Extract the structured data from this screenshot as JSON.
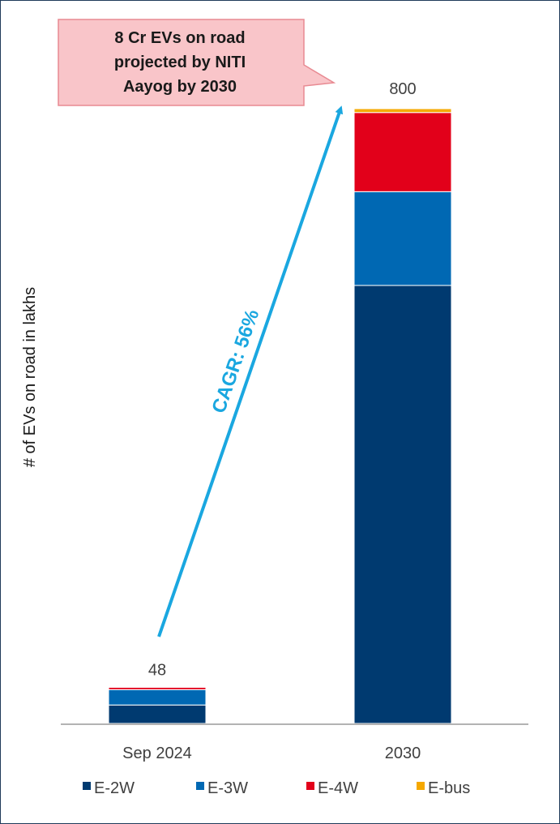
{
  "chart_data": {
    "type": "bar",
    "stacked": true,
    "categories": [
      "Sep 2024",
      "2030"
    ],
    "ylabel": "# of EVs on road in lakhs",
    "totals": [
      "48",
      "800"
    ],
    "series": [
      {
        "name": "E-2W",
        "color": "#003a70",
        "values": [
          24,
          570
        ]
      },
      {
        "name": "E-3W",
        "color": "#0068b3",
        "values": [
          20,
          122
        ]
      },
      {
        "name": "E-4W",
        "color": "#e2001a",
        "values": [
          3,
          103
        ]
      },
      {
        "name": "E-bus",
        "color": "#f5a800",
        "values": [
          1,
          5
        ]
      }
    ],
    "ylim": [
      0,
      800
    ],
    "legend_position": "bottom",
    "grid": false,
    "annotations": {
      "callout": "8 Cr EVs on road projected by NITI Aayog by 2030",
      "callout_lines": [
        "8 Cr EVs on road",
        "projected by NITI",
        "Aayog by 2030"
      ],
      "arrow_label": "CAGR: 56%",
      "arrow_color": "#1aa7e0",
      "callout_fill": "#f9c5c9",
      "callout_border": "#e88a92"
    }
  }
}
